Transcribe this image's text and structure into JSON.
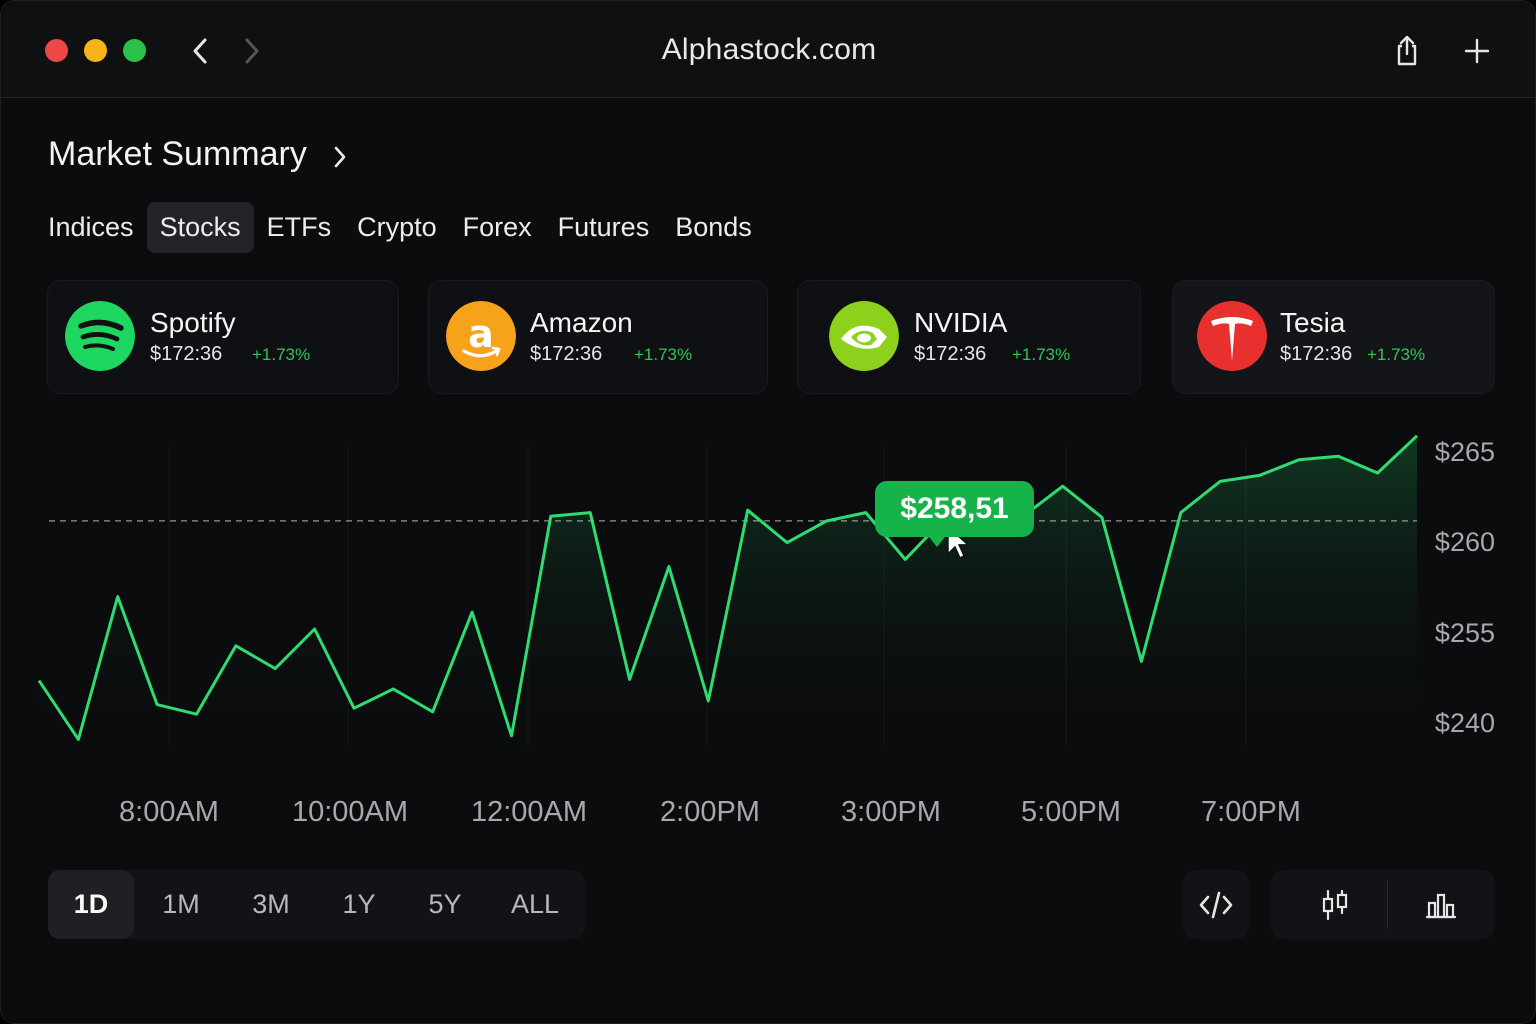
{
  "window": {
    "url": "Alphastock.com"
  },
  "toolbar": {
    "back_icon": "chevron-left-icon",
    "forward_icon": "chevron-right-icon",
    "share_icon": "share-icon",
    "new_tab_icon": "plus-icon"
  },
  "section": {
    "title": "Market Summary",
    "chevron_icon": "chevron-right-icon"
  },
  "tabs": [
    {
      "label": "Indices",
      "active": false
    },
    {
      "label": "Stocks",
      "active": true
    },
    {
      "label": "ETFs",
      "active": false
    },
    {
      "label": "Crypto",
      "active": false
    },
    {
      "label": "Forex",
      "active": false
    },
    {
      "label": "Futures",
      "active": false
    },
    {
      "label": "Bonds",
      "active": false
    }
  ],
  "stocks": [
    {
      "name": "Spotify",
      "price": "$172:36",
      "change": "+1.73%",
      "color": "#1ed760",
      "icon": "spotify-logo"
    },
    {
      "name": "Amazon",
      "price": "$172:36",
      "change": "+1.73%",
      "color": "#f6a21a",
      "icon": "amazon-logo"
    },
    {
      "name": "NVIDIA",
      "price": "$172:36",
      "change": "+1.73%",
      "color": "#8ed11c",
      "icon": "nvidia-logo"
    },
    {
      "name": "Tesia",
      "price": "$172:36",
      "change": "+1.73%",
      "color": "#e8302f",
      "icon": "tesla-logo"
    }
  ],
  "colors": {
    "accent": "#16b34a",
    "line": "#2fdc72",
    "positive": "#31c653",
    "background": "#0b0c0e"
  },
  "tooltip": {
    "value": "$258,51"
  },
  "chart_data": {
    "type": "area",
    "x_tick_labels": [
      "8:00AM",
      "10:00AM",
      "12:00AM",
      "2:00PM",
      "3:00PM",
      "5:00PM",
      "7:00PM"
    ],
    "y_tick_labels": [
      "$265",
      "$260",
      "$255",
      "$240"
    ],
    "reference_line": 258.51,
    "hover_point": {
      "label": "$258,51",
      "value": 258.51
    },
    "series": [
      {
        "values": [
          245.2,
          240.3,
          252.2,
          243.2,
          242.4,
          248.1,
          246.2,
          249.5,
          242.9,
          244.5,
          242.6,
          250.9,
          240.6,
          258.9,
          259.2,
          245.3,
          254.7,
          243.5,
          259.4,
          256.7,
          258.5,
          259.2,
          255.3,
          258.7,
          259.5,
          258.9,
          261.4,
          258.8,
          246.8,
          259.2,
          261.8,
          262.3,
          263.6,
          263.9,
          262.5,
          265.6
        ]
      }
    ],
    "grid": true
  },
  "ranges": [
    {
      "label": "1D",
      "active": true
    },
    {
      "label": "1M",
      "active": false
    },
    {
      "label": "3M",
      "active": false
    },
    {
      "label": "1Y",
      "active": false
    },
    {
      "label": "5Y",
      "active": false
    },
    {
      "label": "ALL",
      "active": false
    }
  ],
  "tools": {
    "embed_icon": "code-icon",
    "candlestick_icon": "candlestick-icon",
    "bars_icon": "bar-chart-icon"
  }
}
